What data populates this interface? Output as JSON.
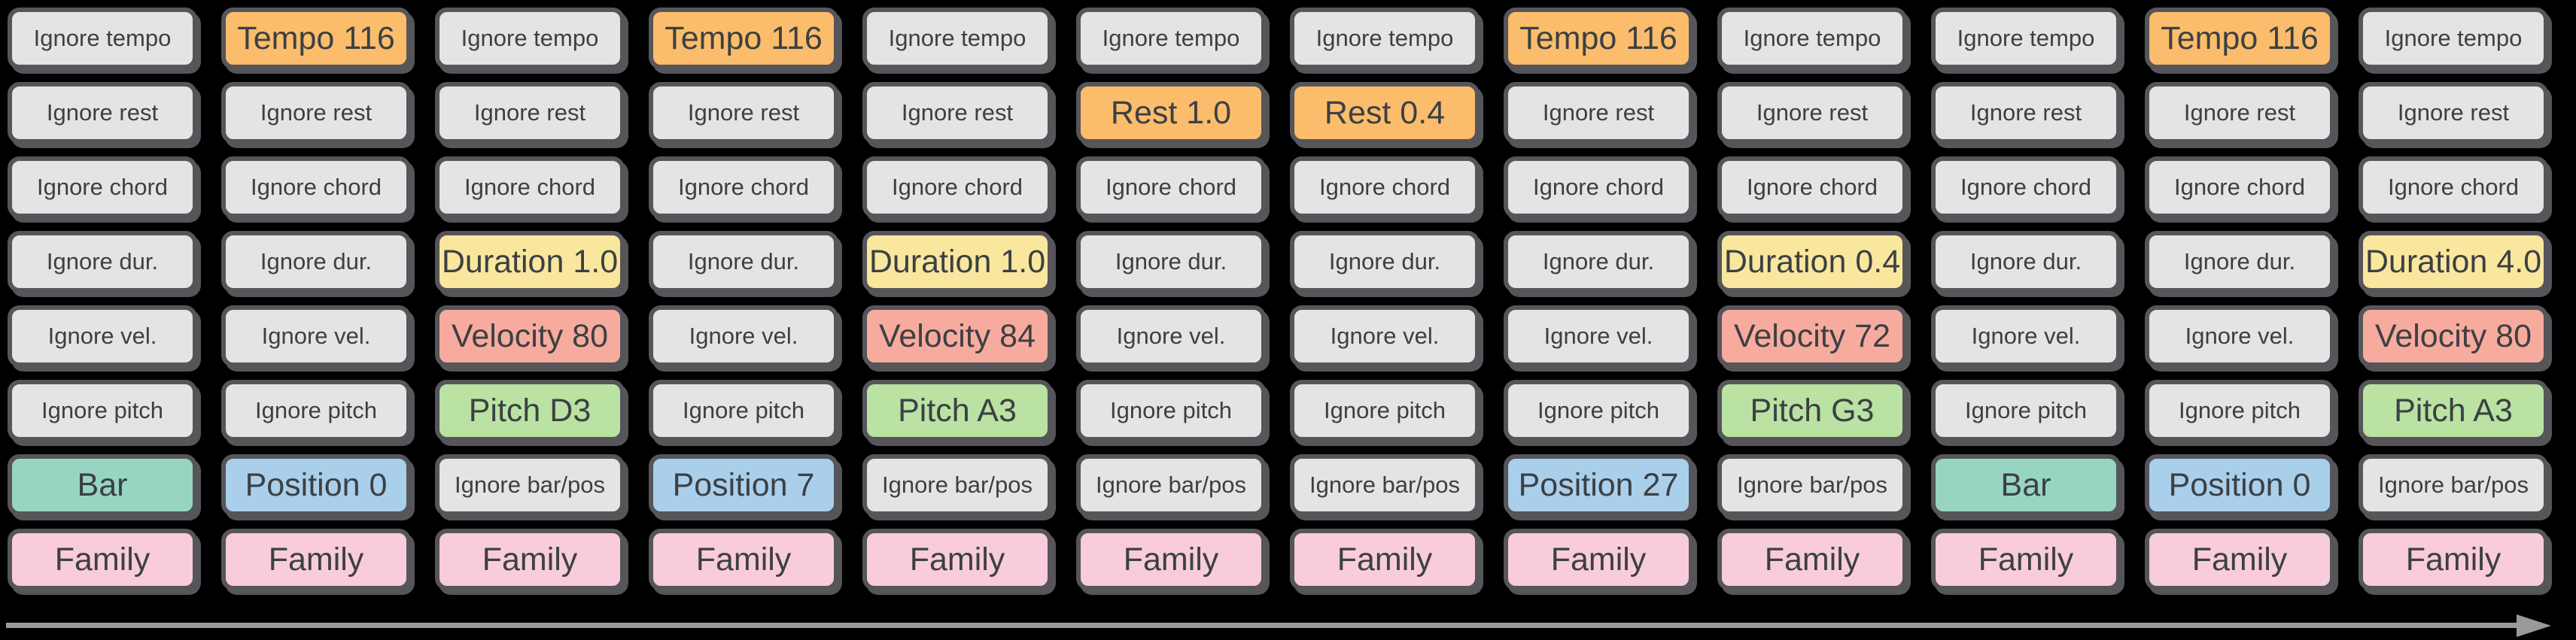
{
  "colors": {
    "background": "#000000",
    "token-border": "#55555A",
    "token-text": "#3C4043",
    "ignore-fill": "#E4E4E4",
    "tempo-fill": "#FBBD6C",
    "rest-fill": "#FBBD6C",
    "duration-fill": "#F9E79E",
    "velocity-fill": "#F7AB9E",
    "pitch-fill": "#BAE2A2",
    "bar-fill": "#97D5C2",
    "position-fill": "#A9CFEB",
    "family-fill": "#F8CCDA",
    "scrollbar": "#9A9A9A"
  },
  "grid": {
    "row_types": [
      "tempo",
      "rest",
      "chord",
      "duration",
      "velocity",
      "pitch",
      "bar-position",
      "family"
    ],
    "columns": [
      {
        "cells": [
          {
            "label": "Ignore tempo",
            "style": "ignore"
          },
          {
            "label": "Ignore rest",
            "style": "ignore"
          },
          {
            "label": "Ignore chord",
            "style": "ignore"
          },
          {
            "label": "Ignore dur.",
            "style": "ignore"
          },
          {
            "label": "Ignore vel.",
            "style": "ignore"
          },
          {
            "label": "Ignore pitch",
            "style": "ignore"
          },
          {
            "label": "Bar",
            "style": "bar"
          },
          {
            "label": "Family",
            "style": "family"
          }
        ]
      },
      {
        "cells": [
          {
            "label": "Tempo 116",
            "style": "tempo"
          },
          {
            "label": "Ignore rest",
            "style": "ignore"
          },
          {
            "label": "Ignore chord",
            "style": "ignore"
          },
          {
            "label": "Ignore dur.",
            "style": "ignore"
          },
          {
            "label": "Ignore vel.",
            "style": "ignore"
          },
          {
            "label": "Ignore pitch",
            "style": "ignore"
          },
          {
            "label": "Position 0",
            "style": "position"
          },
          {
            "label": "Family",
            "style": "family"
          }
        ]
      },
      {
        "cells": [
          {
            "label": "Ignore tempo",
            "style": "ignore"
          },
          {
            "label": "Ignore rest",
            "style": "ignore"
          },
          {
            "label": "Ignore chord",
            "style": "ignore"
          },
          {
            "label": "Duration 1.0",
            "style": "duration"
          },
          {
            "label": "Velocity 80",
            "style": "velocity"
          },
          {
            "label": "Pitch D3",
            "style": "pitch"
          },
          {
            "label": "Ignore bar/pos",
            "style": "ignore"
          },
          {
            "label": "Family",
            "style": "family"
          }
        ]
      },
      {
        "cells": [
          {
            "label": "Tempo 116",
            "style": "tempo"
          },
          {
            "label": "Ignore rest",
            "style": "ignore"
          },
          {
            "label": "Ignore chord",
            "style": "ignore"
          },
          {
            "label": "Ignore dur.",
            "style": "ignore"
          },
          {
            "label": "Ignore vel.",
            "style": "ignore"
          },
          {
            "label": "Ignore pitch",
            "style": "ignore"
          },
          {
            "label": "Position 7",
            "style": "position"
          },
          {
            "label": "Family",
            "style": "family"
          }
        ]
      },
      {
        "cells": [
          {
            "label": "Ignore tempo",
            "style": "ignore"
          },
          {
            "label": "Ignore rest",
            "style": "ignore"
          },
          {
            "label": "Ignore chord",
            "style": "ignore"
          },
          {
            "label": "Duration 1.0",
            "style": "duration"
          },
          {
            "label": "Velocity 84",
            "style": "velocity"
          },
          {
            "label": "Pitch A3",
            "style": "pitch"
          },
          {
            "label": "Ignore bar/pos",
            "style": "ignore"
          },
          {
            "label": "Family",
            "style": "family"
          }
        ]
      },
      {
        "cells": [
          {
            "label": "Ignore tempo",
            "style": "ignore"
          },
          {
            "label": "Rest 1.0",
            "style": "rest"
          },
          {
            "label": "Ignore chord",
            "style": "ignore"
          },
          {
            "label": "Ignore dur.",
            "style": "ignore"
          },
          {
            "label": "Ignore vel.",
            "style": "ignore"
          },
          {
            "label": "Ignore pitch",
            "style": "ignore"
          },
          {
            "label": "Ignore bar/pos",
            "style": "ignore"
          },
          {
            "label": "Family",
            "style": "family"
          }
        ]
      },
      {
        "cells": [
          {
            "label": "Ignore tempo",
            "style": "ignore"
          },
          {
            "label": "Rest 0.4",
            "style": "rest"
          },
          {
            "label": "Ignore chord",
            "style": "ignore"
          },
          {
            "label": "Ignore dur.",
            "style": "ignore"
          },
          {
            "label": "Ignore vel.",
            "style": "ignore"
          },
          {
            "label": "Ignore pitch",
            "style": "ignore"
          },
          {
            "label": "Ignore bar/pos",
            "style": "ignore"
          },
          {
            "label": "Family",
            "style": "family"
          }
        ]
      },
      {
        "cells": [
          {
            "label": "Tempo 116",
            "style": "tempo"
          },
          {
            "label": "Ignore rest",
            "style": "ignore"
          },
          {
            "label": "Ignore chord",
            "style": "ignore"
          },
          {
            "label": "Ignore dur.",
            "style": "ignore"
          },
          {
            "label": "Ignore vel.",
            "style": "ignore"
          },
          {
            "label": "Ignore pitch",
            "style": "ignore"
          },
          {
            "label": "Position 27",
            "style": "position"
          },
          {
            "label": "Family",
            "style": "family"
          }
        ]
      },
      {
        "cells": [
          {
            "label": "Ignore tempo",
            "style": "ignore"
          },
          {
            "label": "Ignore rest",
            "style": "ignore"
          },
          {
            "label": "Ignore chord",
            "style": "ignore"
          },
          {
            "label": "Duration 0.4",
            "style": "duration"
          },
          {
            "label": "Velocity 72",
            "style": "velocity"
          },
          {
            "label": "Pitch G3",
            "style": "pitch"
          },
          {
            "label": "Ignore bar/pos",
            "style": "ignore"
          },
          {
            "label": "Family",
            "style": "family"
          }
        ]
      },
      {
        "cells": [
          {
            "label": "Ignore tempo",
            "style": "ignore"
          },
          {
            "label": "Ignore rest",
            "style": "ignore"
          },
          {
            "label": "Ignore chord",
            "style": "ignore"
          },
          {
            "label": "Ignore dur.",
            "style": "ignore"
          },
          {
            "label": "Ignore vel.",
            "style": "ignore"
          },
          {
            "label": "Ignore pitch",
            "style": "ignore"
          },
          {
            "label": "Bar",
            "style": "bar"
          },
          {
            "label": "Family",
            "style": "family"
          }
        ]
      },
      {
        "cells": [
          {
            "label": "Tempo 116",
            "style": "tempo"
          },
          {
            "label": "Ignore rest",
            "style": "ignore"
          },
          {
            "label": "Ignore chord",
            "style": "ignore"
          },
          {
            "label": "Ignore dur.",
            "style": "ignore"
          },
          {
            "label": "Ignore vel.",
            "style": "ignore"
          },
          {
            "label": "Ignore pitch",
            "style": "ignore"
          },
          {
            "label": "Position 0",
            "style": "position"
          },
          {
            "label": "Family",
            "style": "family"
          }
        ]
      },
      {
        "cells": [
          {
            "label": "Ignore tempo",
            "style": "ignore"
          },
          {
            "label": "Ignore rest",
            "style": "ignore"
          },
          {
            "label": "Ignore chord",
            "style": "ignore"
          },
          {
            "label": "Duration 4.0",
            "style": "duration"
          },
          {
            "label": "Velocity 80",
            "style": "velocity"
          },
          {
            "label": "Pitch A3",
            "style": "pitch"
          },
          {
            "label": "Ignore bar/pos",
            "style": "ignore"
          },
          {
            "label": "Family",
            "style": "family"
          }
        ]
      }
    ]
  },
  "scrollbar": {
    "direction": "right"
  }
}
